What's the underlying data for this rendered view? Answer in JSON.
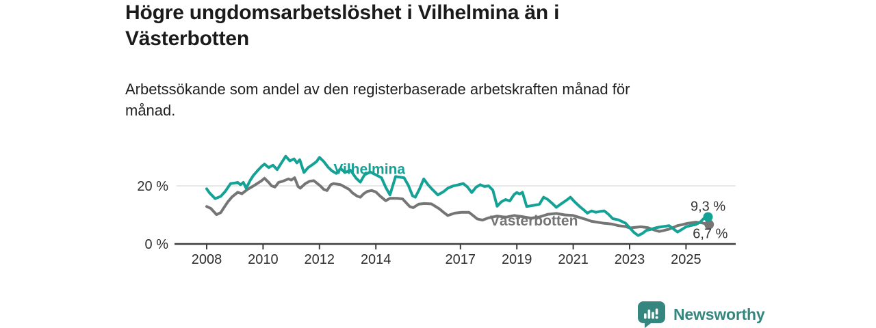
{
  "header": {
    "title_lines": [
      "Högre ungdomsarbetslöshet i Vilhelmina än i",
      "Västerbotten"
    ],
    "subtitle_lines": [
      "Arbetssökande som andel av den registerbaserade arbetskraften månad för",
      "månad."
    ]
  },
  "colors": {
    "vilhelmina": "#15a296",
    "vasterbotten": "#757575",
    "axis": "#3d3d3d",
    "tick_text": "#2e2e2e",
    "grid": "#d9d9d9",
    "annotation_text": "#333333",
    "logo_teal": "#35867f"
  },
  "footer": {
    "brand": "Newsworthy",
    "logo_icon": "bar-chart-speech-bubble"
  },
  "chart_data": {
    "type": "line",
    "x_unit": "year (monthly series)",
    "xlim": [
      2007.6,
      2026.3
    ],
    "ylim": [
      0,
      32
    ],
    "grid": "horizontal gridline at 20 % only",
    "legend_position": "inline labels on lines",
    "y_ticks": [
      {
        "value": 0,
        "label": "0 %"
      },
      {
        "value": 20,
        "label": "20 %"
      }
    ],
    "x_ticks": [
      {
        "value": 2008,
        "label": "2008"
      },
      {
        "value": 2010,
        "label": "2010"
      },
      {
        "value": 2012,
        "label": "2012"
      },
      {
        "value": 2014,
        "label": "2014"
      },
      {
        "value": 2017,
        "label": "2017"
      },
      {
        "value": 2019,
        "label": "2019"
      },
      {
        "value": 2021,
        "label": "2021"
      },
      {
        "value": 2023,
        "label": "2023"
      },
      {
        "value": 2025,
        "label": "2025"
      }
    ],
    "annotations": [
      {
        "name": "end-value-vilhelmina",
        "text": "9,3 %",
        "year": 2025.78,
        "value": 9.3,
        "dy": -9
      },
      {
        "name": "end-value-vasterbotten",
        "text": "6,7 %",
        "year": 2025.86,
        "value": 6.7,
        "dy": 20
      }
    ],
    "series": [
      {
        "name": "Vilhelmina",
        "color": "#15a296",
        "end_label": "9,3 %",
        "end_value": 9.3,
        "inline_label": {
          "year": 2012.5,
          "value": 24.1
        },
        "points": [
          [
            2008,
            19
          ],
          [
            2008.1,
            17.6
          ],
          [
            2008.3,
            15.6
          ],
          [
            2008.5,
            16.4
          ],
          [
            2008.65,
            18
          ],
          [
            2008.85,
            20.8
          ],
          [
            2009,
            21
          ],
          [
            2009.1,
            21.2
          ],
          [
            2009.2,
            20.4
          ],
          [
            2009.3,
            21.2
          ],
          [
            2009.4,
            19.2
          ],
          [
            2009.55,
            22
          ],
          [
            2009.65,
            23.5
          ],
          [
            2009.8,
            25.2
          ],
          [
            2009.95,
            26.7
          ],
          [
            2010.05,
            27.5
          ],
          [
            2010.2,
            26.3
          ],
          [
            2010.35,
            27.1
          ],
          [
            2010.5,
            25.6
          ],
          [
            2010.65,
            27.9
          ],
          [
            2010.8,
            30.2
          ],
          [
            2010.95,
            28.6
          ],
          [
            2011.1,
            29.3
          ],
          [
            2011.2,
            27.9
          ],
          [
            2011.3,
            29
          ],
          [
            2011.45,
            24.6
          ],
          [
            2011.6,
            26.3
          ],
          [
            2011.75,
            27.3
          ],
          [
            2011.9,
            28.4
          ],
          [
            2012,
            29.8
          ],
          [
            2012.15,
            28.4
          ],
          [
            2012.3,
            26.5
          ],
          [
            2012.45,
            25.1
          ],
          [
            2012.6,
            24.3
          ],
          [
            2012.75,
            26
          ],
          [
            2012.9,
            24.6
          ],
          [
            2013.1,
            25.4
          ],
          [
            2013.3,
            22.6
          ],
          [
            2013.45,
            21.3
          ],
          [
            2013.6,
            23.8
          ],
          [
            2013.8,
            24.8
          ],
          [
            2014,
            23.8
          ],
          [
            2014.2,
            22.8
          ],
          [
            2014.35,
            19.5
          ],
          [
            2014.5,
            16.9
          ],
          [
            2014.7,
            23.2
          ],
          [
            2014.85,
            23
          ],
          [
            2015,
            22.8
          ],
          [
            2015.15,
            20.2
          ],
          [
            2015.3,
            16.6
          ],
          [
            2015.4,
            16.1
          ],
          [
            2015.55,
            19
          ],
          [
            2015.7,
            22.4
          ],
          [
            2015.85,
            20.4
          ],
          [
            2016,
            18.8
          ],
          [
            2016.2,
            16.9
          ],
          [
            2016.4,
            18
          ],
          [
            2016.55,
            19.2
          ],
          [
            2016.75,
            20
          ],
          [
            2016.9,
            20.3
          ],
          [
            2017.1,
            20.8
          ],
          [
            2017.25,
            19.6
          ],
          [
            2017.4,
            17.7
          ],
          [
            2017.55,
            19.5
          ],
          [
            2017.7,
            20.4
          ],
          [
            2017.85,
            19.8
          ],
          [
            2018,
            20
          ],
          [
            2018.15,
            18.5
          ],
          [
            2018.3,
            13
          ],
          [
            2018.45,
            14.5
          ],
          [
            2018.6,
            15.3
          ],
          [
            2018.75,
            14.8
          ],
          [
            2018.9,
            17
          ],
          [
            2019,
            17.7
          ],
          [
            2019.1,
            17.2
          ],
          [
            2019.2,
            17.8
          ],
          [
            2019.35,
            12.9
          ],
          [
            2019.6,
            13.3
          ],
          [
            2019.8,
            13.7
          ],
          [
            2019.95,
            16.1
          ],
          [
            2020.1,
            15.3
          ],
          [
            2020.25,
            14
          ],
          [
            2020.4,
            12.6
          ],
          [
            2020.6,
            14
          ],
          [
            2020.75,
            15
          ],
          [
            2020.9,
            16.1
          ],
          [
            2021.05,
            14.5
          ],
          [
            2021.25,
            12.7
          ],
          [
            2021.4,
            11.5
          ],
          [
            2021.5,
            10.6
          ],
          [
            2021.65,
            11.4
          ],
          [
            2021.8,
            10.9
          ],
          [
            2021.95,
            11.2
          ],
          [
            2022.1,
            11.4
          ],
          [
            2022.25,
            10.2
          ],
          [
            2022.4,
            8.7
          ],
          [
            2022.6,
            8.3
          ],
          [
            2022.85,
            7.2
          ],
          [
            2023,
            5.6
          ],
          [
            2023.15,
            4
          ],
          [
            2023.3,
            2.9
          ],
          [
            2023.45,
            3.6
          ],
          [
            2023.6,
            4.7
          ],
          [
            2023.75,
            5
          ],
          [
            2023.9,
            5.5
          ],
          [
            2024.05,
            5.8
          ],
          [
            2024.2,
            6
          ],
          [
            2024.4,
            6.3
          ],
          [
            2024.55,
            5.2
          ],
          [
            2024.7,
            4.1
          ],
          [
            2024.85,
            5
          ],
          [
            2025,
            5.9
          ],
          [
            2025.15,
            6.3
          ],
          [
            2025.35,
            6.7
          ],
          [
            2025.5,
            7.5
          ],
          [
            2025.65,
            9
          ],
          [
            2025.78,
            9.3
          ]
        ]
      },
      {
        "name": "Västerbotten",
        "color": "#757575",
        "end_label": "6,7 %",
        "end_value": 6.7,
        "inline_label": {
          "year": 2018.05,
          "value": 6.35
        },
        "points": [
          [
            2008,
            12.9
          ],
          [
            2008.15,
            12.2
          ],
          [
            2008.35,
            10.1
          ],
          [
            2008.5,
            10.8
          ],
          [
            2008.6,
            12.3
          ],
          [
            2008.75,
            14.5
          ],
          [
            2008.9,
            16.2
          ],
          [
            2009.1,
            17.8
          ],
          [
            2009.25,
            17.3
          ],
          [
            2009.45,
            18.8
          ],
          [
            2009.7,
            20.2
          ],
          [
            2009.95,
            21.8
          ],
          [
            2010.05,
            22.6
          ],
          [
            2010.2,
            21.2
          ],
          [
            2010.3,
            20
          ],
          [
            2010.42,
            19.6
          ],
          [
            2010.55,
            21.2
          ],
          [
            2010.7,
            21.6
          ],
          [
            2010.9,
            22.4
          ],
          [
            2011,
            22
          ],
          [
            2011.12,
            22.8
          ],
          [
            2011.24,
            19.8
          ],
          [
            2011.32,
            19.2
          ],
          [
            2011.5,
            20.8
          ],
          [
            2011.65,
            21.6
          ],
          [
            2011.8,
            21.8
          ],
          [
            2012.03,
            20
          ],
          [
            2012.15,
            18.8
          ],
          [
            2012.27,
            18.4
          ],
          [
            2012.4,
            20.4
          ],
          [
            2012.5,
            20.8
          ],
          [
            2012.75,
            20.4
          ],
          [
            2012.9,
            19.6
          ],
          [
            2013.05,
            18.8
          ],
          [
            2013.17,
            17.6
          ],
          [
            2013.33,
            16.5
          ],
          [
            2013.45,
            16.1
          ],
          [
            2013.57,
            17.3
          ],
          [
            2013.7,
            18.1
          ],
          [
            2013.85,
            18.4
          ],
          [
            2014,
            17.9
          ],
          [
            2014.15,
            16.5
          ],
          [
            2014.35,
            14.9
          ],
          [
            2014.5,
            15.7
          ],
          [
            2014.75,
            15.7
          ],
          [
            2014.95,
            15.5
          ],
          [
            2015.2,
            12.9
          ],
          [
            2015.32,
            12.5
          ],
          [
            2015.52,
            13.7
          ],
          [
            2015.72,
            13.9
          ],
          [
            2015.97,
            13.8
          ],
          [
            2016.25,
            12.1
          ],
          [
            2016.4,
            10.9
          ],
          [
            2016.55,
            9.8
          ],
          [
            2016.8,
            10.6
          ],
          [
            2017.05,
            10.9
          ],
          [
            2017.3,
            10.9
          ],
          [
            2017.45,
            9.8
          ],
          [
            2017.6,
            8.6
          ],
          [
            2017.78,
            8.2
          ],
          [
            2018,
            9
          ],
          [
            2018.3,
            9.6
          ],
          [
            2018.6,
            9.2
          ],
          [
            2018.9,
            9.8
          ],
          [
            2019.2,
            9.4
          ],
          [
            2019.5,
            8.9
          ],
          [
            2019.8,
            9.3
          ],
          [
            2020.1,
            10.2
          ],
          [
            2020.4,
            10.5
          ],
          [
            2020.7,
            10
          ],
          [
            2021,
            9.8
          ],
          [
            2021.2,
            9.2
          ],
          [
            2021.4,
            8.6
          ],
          [
            2021.65,
            7.8
          ],
          [
            2021.85,
            7.5
          ],
          [
            2022.1,
            7.1
          ],
          [
            2022.35,
            6.9
          ],
          [
            2022.6,
            6.3
          ],
          [
            2022.85,
            6
          ],
          [
            2023,
            5.5
          ],
          [
            2023.2,
            5.7
          ],
          [
            2023.4,
            5.9
          ],
          [
            2023.65,
            5.6
          ],
          [
            2023.9,
            4.7
          ],
          [
            2024.05,
            4.3
          ],
          [
            2024.2,
            4.6
          ],
          [
            2024.4,
            5.1
          ],
          [
            2024.55,
            5.7
          ],
          [
            2024.7,
            6.3
          ],
          [
            2024.85,
            6.6
          ],
          [
            2025.05,
            7.1
          ],
          [
            2025.2,
            7.3
          ],
          [
            2025.35,
            7.5
          ],
          [
            2025.55,
            7.3
          ],
          [
            2025.67,
            7
          ],
          [
            2025.82,
            6.7
          ]
        ]
      }
    ]
  }
}
